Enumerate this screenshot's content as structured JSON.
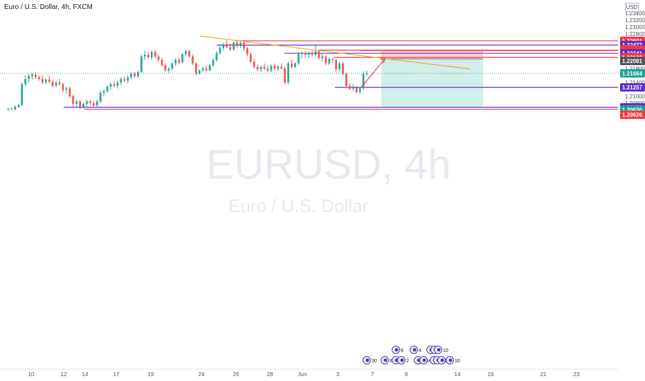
{
  "header": {
    "symbol_title": "Euro / U.S. Dollar, 4h, FXCM",
    "currency": "USD"
  },
  "watermark": {
    "symbol": "EURUSD, 4h",
    "description": "Euro / U.S. Dollar"
  },
  "colors": {
    "up": "#26a69a",
    "down": "#ef5350",
    "red_line": "#f23645",
    "purple_line": "#5b2fc9",
    "trend_line": "#f5a623",
    "current_price": "#1fa394",
    "stop_zone": "#f7c5c7",
    "target_zone": "#c8ebe6",
    "axis_text": "#50535e"
  },
  "price_axis": {
    "ticks": [
      "1.23400",
      "1.23200",
      "1.23000",
      "1.22800",
      "1.22600",
      "1.22400",
      "1.22200",
      "1.22000",
      "1.21800",
      "1.21600",
      "1.21400",
      "1.21200",
      "1.21000",
      "1.20800",
      "1.20600"
    ]
  },
  "time_axis": {
    "labels": [
      "10",
      "12",
      "14",
      "17",
      "19",
      "24",
      "26",
      "28",
      "Jun",
      "3",
      "7",
      "9",
      "14",
      "16",
      "21",
      "23"
    ]
  },
  "levels": [
    {
      "price": 1.22601,
      "label": "1.22601",
      "kind": "red"
    },
    {
      "price": 1.22477,
      "label": "1.22477",
      "kind": "purple"
    },
    {
      "price": 1.22332,
      "label": "1.22332",
      "kind": "red"
    },
    {
      "price": 1.22322,
      "label": "1.22322",
      "kind": "red"
    },
    {
      "price": 1.22241,
      "label": "1.22241",
      "kind": "purple"
    },
    {
      "price": 1.22123,
      "label": "1.22123",
      "kind": "red"
    },
    {
      "price": 1.22081,
      "label": "1.22081",
      "kind": "entry"
    },
    {
      "price": 1.21664,
      "label": "1.21664",
      "kind": "current"
    },
    {
      "price": 1.21257,
      "label": "1.21257",
      "kind": "purple"
    },
    {
      "price": 1.20682,
      "label": "1.20682",
      "kind": "purple"
    },
    {
      "price": 1.2063,
      "label": "1.20630",
      "kind": "current"
    },
    {
      "price": 1.20626,
      "label": "1.20626",
      "kind": "red"
    }
  ],
  "position_tool": {
    "entry": 1.22081,
    "stop": 1.22332,
    "target": 1.20682
  },
  "event_markers": {
    "row1": [
      "6",
      "4",
      "4",
      "2",
      "10"
    ],
    "row2": [
      "30",
      "8",
      "0",
      "2",
      "10",
      "4",
      "0",
      "11",
      "13",
      "10"
    ]
  },
  "chart_data": {
    "type": "candlestick",
    "symbol": "Euro / U.S. Dollar",
    "interval": "4h",
    "ylim": [
      1.206,
      1.2345
    ],
    "trendline": {
      "from_price": 1.2274,
      "to_price": 1.2179
    },
    "projection": {
      "from_price": 1.21257,
      "to_price": 1.22081
    },
    "candles": [
      [
        1.2062,
        1.2067,
        1.2057,
        1.2064
      ],
      [
        1.2064,
        1.2068,
        1.206,
        1.2062
      ],
      [
        1.2062,
        1.2073,
        1.206,
        1.207
      ],
      [
        1.207,
        1.2078,
        1.2066,
        1.2075
      ],
      [
        1.2075,
        1.214,
        1.2072,
        1.2135
      ],
      [
        1.2135,
        1.216,
        1.2128,
        1.215
      ],
      [
        1.215,
        1.2165,
        1.214,
        1.2158
      ],
      [
        1.2158,
        1.2168,
        1.2148,
        1.2163
      ],
      [
        1.2163,
        1.217,
        1.215,
        1.2155
      ],
      [
        1.2155,
        1.2162,
        1.2145,
        1.215
      ],
      [
        1.215,
        1.216,
        1.2135,
        1.214
      ],
      [
        1.214,
        1.2152,
        1.2134,
        1.2148
      ],
      [
        1.2148,
        1.216,
        1.2138,
        1.2142
      ],
      [
        1.2142,
        1.2148,
        1.2125,
        1.213
      ],
      [
        1.213,
        1.2145,
        1.2125,
        1.214
      ],
      [
        1.214,
        1.215,
        1.213,
        1.2135
      ],
      [
        1.2135,
        1.2138,
        1.211,
        1.2118
      ],
      [
        1.2118,
        1.2128,
        1.2108,
        1.2123
      ],
      [
        1.2123,
        1.2128,
        1.2095,
        1.21
      ],
      [
        1.21,
        1.2105,
        1.207,
        1.2078
      ],
      [
        1.2078,
        1.209,
        1.2066,
        1.2085
      ],
      [
        1.2085,
        1.209,
        1.2062,
        1.207
      ],
      [
        1.207,
        1.2082,
        1.2064,
        1.2078
      ],
      [
        1.2078,
        1.209,
        1.207,
        1.2085
      ],
      [
        1.2085,
        1.209,
        1.2072,
        1.208
      ],
      [
        1.208,
        1.2088,
        1.207,
        1.2074
      ],
      [
        1.2074,
        1.209,
        1.207,
        1.2085
      ],
      [
        1.2085,
        1.2118,
        1.208,
        1.211
      ],
      [
        1.211,
        1.212,
        1.21,
        1.2115
      ],
      [
        1.2115,
        1.2132,
        1.211,
        1.2128
      ],
      [
        1.2128,
        1.214,
        1.2118,
        1.2135
      ],
      [
        1.2135,
        1.2145,
        1.2125,
        1.213
      ],
      [
        1.213,
        1.2145,
        1.2122,
        1.214
      ],
      [
        1.214,
        1.2155,
        1.2132,
        1.215
      ],
      [
        1.215,
        1.2158,
        1.214,
        1.2145
      ],
      [
        1.2145,
        1.216,
        1.2138,
        1.2155
      ],
      [
        1.2155,
        1.217,
        1.2148,
        1.2165
      ],
      [
        1.2165,
        1.217,
        1.2152,
        1.2158
      ],
      [
        1.2158,
        1.2175,
        1.2152,
        1.217
      ],
      [
        1.217,
        1.222,
        1.2168,
        1.2215
      ],
      [
        1.2215,
        1.2232,
        1.2205,
        1.222
      ],
      [
        1.222,
        1.2228,
        1.2208,
        1.2212
      ],
      [
        1.2212,
        1.2232,
        1.2205,
        1.2228
      ],
      [
        1.2228,
        1.2235,
        1.221,
        1.2215
      ],
      [
        1.2215,
        1.2222,
        1.2198,
        1.2205
      ],
      [
        1.2205,
        1.2212,
        1.2185,
        1.219
      ],
      [
        1.219,
        1.2195,
        1.217,
        1.2175
      ],
      [
        1.2175,
        1.2185,
        1.2168,
        1.218
      ],
      [
        1.218,
        1.2198,
        1.2175,
        1.2195
      ],
      [
        1.2195,
        1.221,
        1.2188,
        1.2205
      ],
      [
        1.2205,
        1.2212,
        1.2192,
        1.2198
      ],
      [
        1.2198,
        1.2225,
        1.2195,
        1.2222
      ],
      [
        1.2222,
        1.2236,
        1.2215,
        1.223
      ],
      [
        1.223,
        1.2234,
        1.2212,
        1.2215
      ],
      [
        1.2215,
        1.222,
        1.219,
        1.2195
      ],
      [
        1.2195,
        1.2198,
        1.216,
        1.2165
      ],
      [
        1.2165,
        1.2178,
        1.2162,
        1.2175
      ],
      [
        1.2175,
        1.2185,
        1.217,
        1.218
      ],
      [
        1.218,
        1.2188,
        1.2172,
        1.2175
      ],
      [
        1.2175,
        1.2195,
        1.2172,
        1.219
      ],
      [
        1.219,
        1.221,
        1.2185,
        1.2205
      ],
      [
        1.2205,
        1.223,
        1.22,
        1.2225
      ],
      [
        1.2225,
        1.2245,
        1.222,
        1.224
      ],
      [
        1.224,
        1.2255,
        1.2232,
        1.225
      ],
      [
        1.225,
        1.2262,
        1.2238,
        1.2242
      ],
      [
        1.2242,
        1.2252,
        1.223,
        1.2235
      ],
      [
        1.2235,
        1.2258,
        1.2232,
        1.2255
      ],
      [
        1.2255,
        1.2262,
        1.224,
        1.2245
      ],
      [
        1.2245,
        1.226,
        1.224,
        1.2255
      ],
      [
        1.2255,
        1.2262,
        1.223,
        1.2238
      ],
      [
        1.2238,
        1.2242,
        1.2215,
        1.2222
      ],
      [
        1.2222,
        1.2228,
        1.2195,
        1.22
      ],
      [
        1.22,
        1.2208,
        1.218,
        1.2185
      ],
      [
        1.2185,
        1.2192,
        1.2172,
        1.2178
      ],
      [
        1.2178,
        1.219,
        1.217,
        1.2185
      ],
      [
        1.2185,
        1.2195,
        1.2175,
        1.218
      ],
      [
        1.218,
        1.2188,
        1.217,
        1.2175
      ],
      [
        1.2175,
        1.2192,
        1.217,
        1.2188
      ],
      [
        1.2188,
        1.2195,
        1.2175,
        1.218
      ],
      [
        1.218,
        1.219,
        1.2172,
        1.2185
      ],
      [
        1.2185,
        1.2195,
        1.2178,
        1.218
      ],
      [
        1.218,
        1.2186,
        1.2135,
        1.214
      ],
      [
        1.214,
        1.22,
        1.2135,
        1.2195
      ],
      [
        1.2195,
        1.2205,
        1.218,
        1.2185
      ],
      [
        1.2185,
        1.2198,
        1.2182,
        1.2195
      ],
      [
        1.2195,
        1.2228,
        1.219,
        1.2222
      ],
      [
        1.2222,
        1.223,
        1.221,
        1.2225
      ],
      [
        1.2225,
        1.2232,
        1.2212,
        1.222
      ],
      [
        1.222,
        1.223,
        1.221,
        1.2225
      ],
      [
        1.2225,
        1.2235,
        1.2215,
        1.222
      ],
      [
        1.222,
        1.225,
        1.2215,
        1.223
      ],
      [
        1.223,
        1.2234,
        1.2205,
        1.221
      ],
      [
        1.221,
        1.2222,
        1.22,
        1.2215
      ],
      [
        1.2215,
        1.2218,
        1.219,
        1.2195
      ],
      [
        1.2195,
        1.2212,
        1.219,
        1.2208
      ],
      [
        1.2208,
        1.2212,
        1.2198,
        1.2205
      ],
      [
        1.2205,
        1.2208,
        1.217,
        1.2178
      ],
      [
        1.2178,
        1.22,
        1.2172,
        1.2195
      ],
      [
        1.2195,
        1.22,
        1.216,
        1.2165
      ],
      [
        1.2165,
        1.2168,
        1.2125,
        1.213
      ],
      [
        1.213,
        1.2138,
        1.2118,
        1.2122
      ],
      [
        1.2122,
        1.2135,
        1.2115,
        1.2125
      ],
      [
        1.2125,
        1.213,
        1.2108,
        1.2112
      ],
      [
        1.2112,
        1.2128,
        1.2105,
        1.2123
      ],
      [
        1.2123,
        1.2172,
        1.2118,
        1.2165
      ],
      [
        1.2165,
        1.2174,
        1.2158,
        1.2166
      ]
    ]
  }
}
